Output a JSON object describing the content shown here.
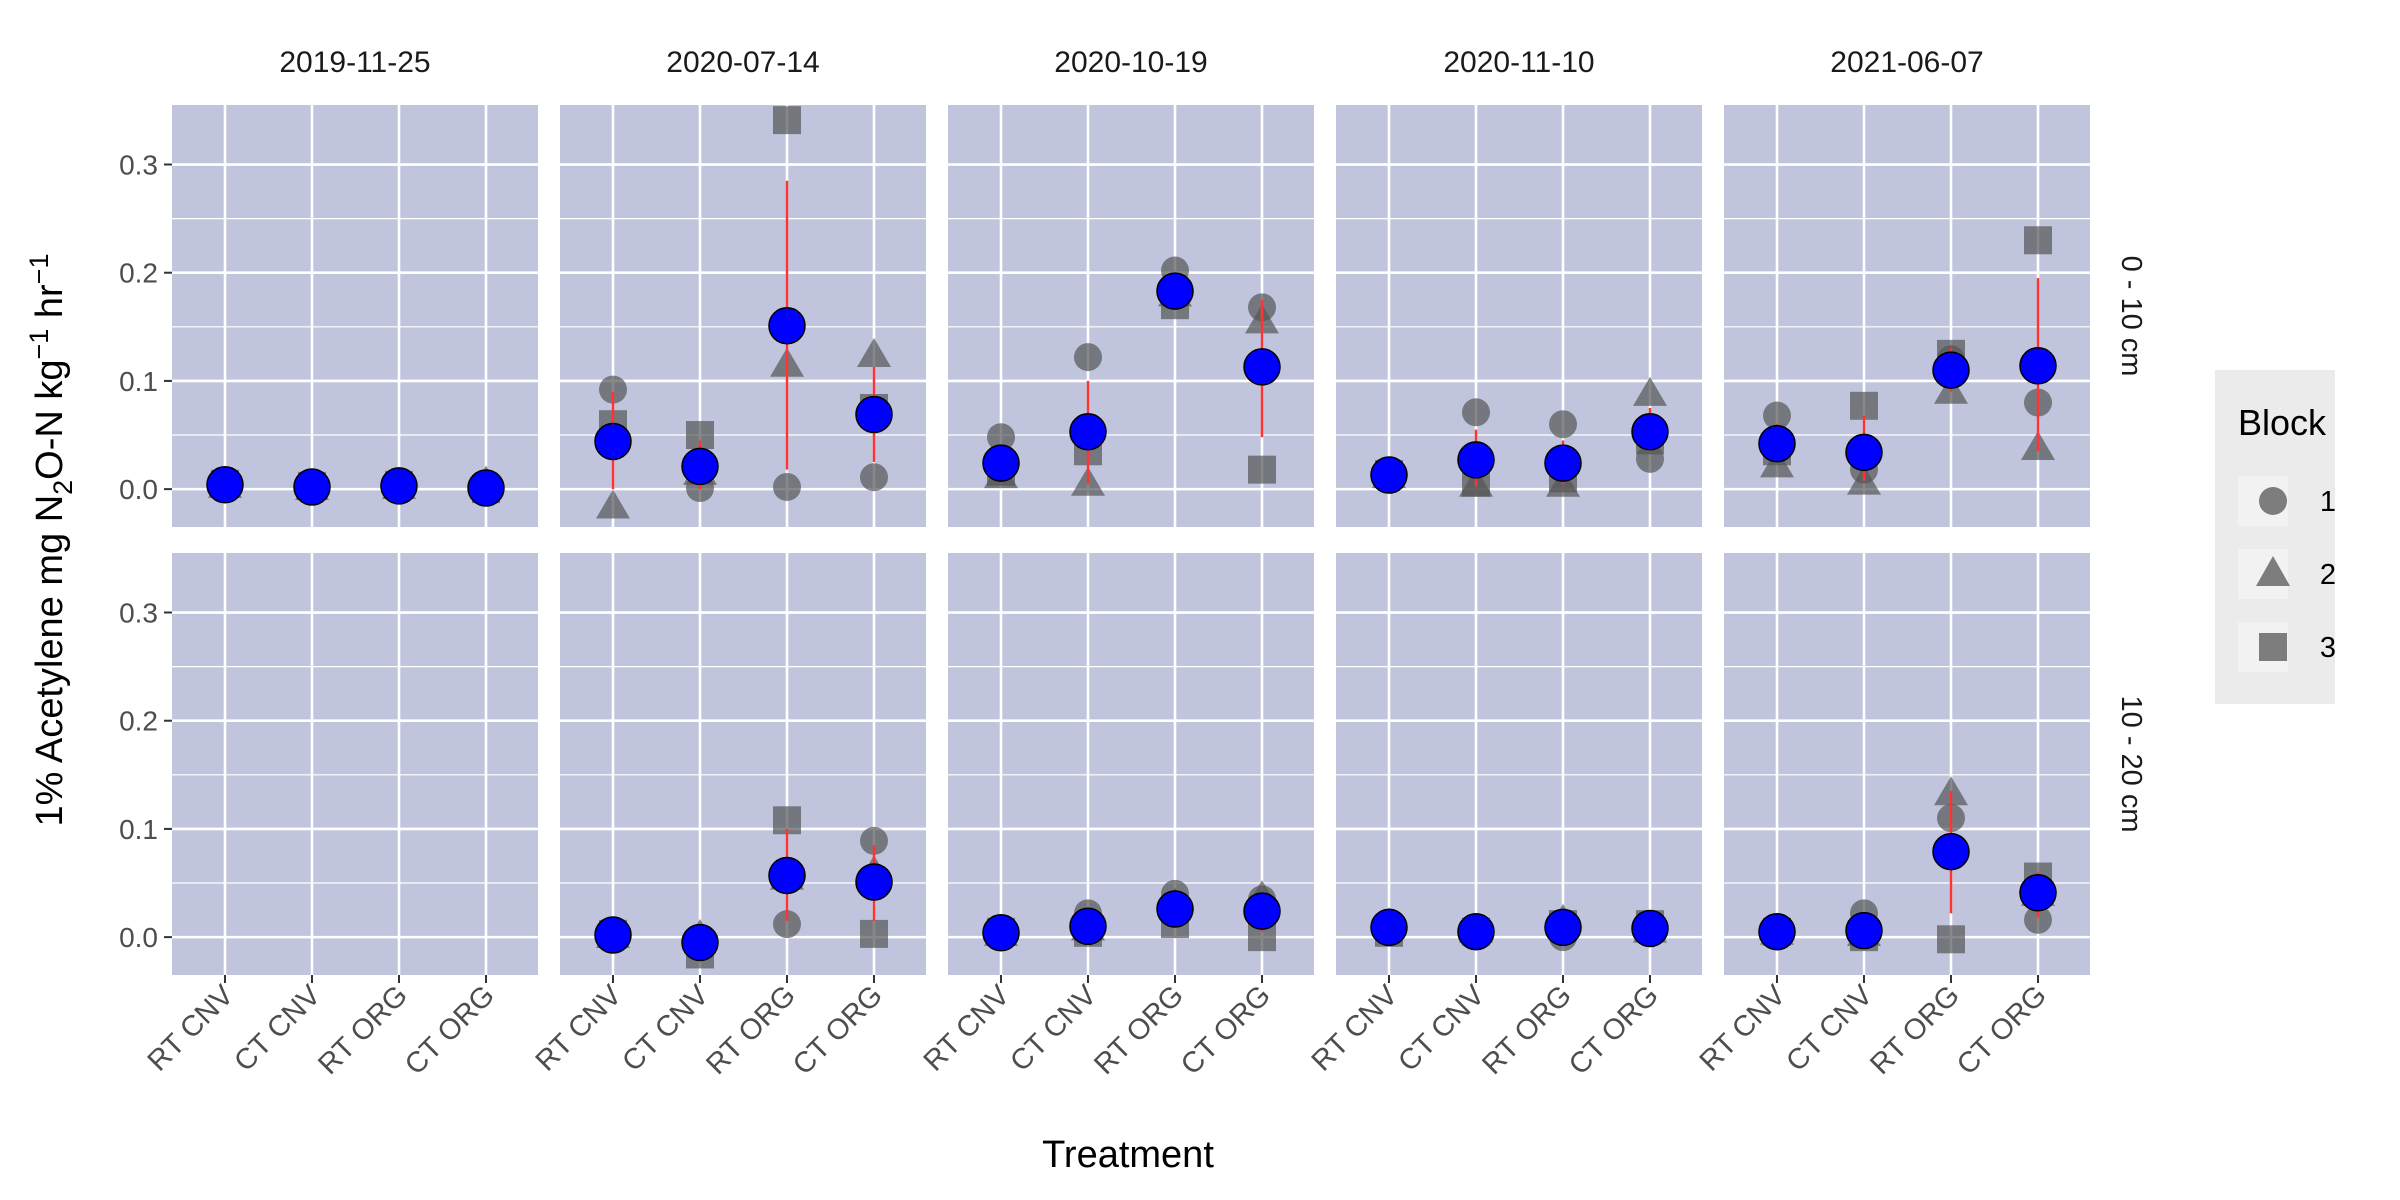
{
  "chart_data": {
    "type": "scatter",
    "xlabel": "Treatment",
    "ylabel": {
      "main": "1% Acetylene mg N",
      "sub": "2",
      "mid": "O-N kg",
      "sup1": "−1",
      "mid2": " hr",
      "sup2": "−1"
    },
    "ylim": [
      -0.035,
      0.355
    ],
    "yticks": [
      "0.0",
      "0.1",
      "0.2",
      "0.3"
    ],
    "ytick_values": [
      0.0,
      0.1,
      0.2,
      0.3
    ],
    "categories": [
      "RT CNV",
      "CT CNV",
      "RT ORG",
      "CT ORG"
    ],
    "facet_cols": [
      "2019-11-25",
      "2020-07-14",
      "2020-10-19",
      "2020-11-10",
      "2021-06-07"
    ],
    "facet_rows": [
      "0 - 10 cm",
      "10 - 20 cm"
    ],
    "grid": true,
    "legend": {
      "title": "Block",
      "position": "right",
      "items": [
        {
          "label": "1",
          "shape": "circle"
        },
        {
          "label": "2",
          "shape": "triangle"
        },
        {
          "label": "3",
          "shape": "square"
        }
      ]
    },
    "colors": {
      "panel_bg": "#c0c5dd",
      "grid": "#ffffff",
      "mean": "#0000ff",
      "error_bar": "#ff3333",
      "block_points": "#555555",
      "legend_bg": "#ebebeb"
    },
    "panels": [
      {
        "row": 0,
        "col": 0,
        "data": [
          {
            "cat": "RT CNV",
            "mean": 0.004,
            "lo": 0.004,
            "hi": 0.004,
            "blocks": [
              0.004,
              0.003,
              0.005
            ]
          },
          {
            "cat": "CT CNV",
            "mean": 0.002,
            "lo": 0.002,
            "hi": 0.002,
            "blocks": [
              0.002,
              0.001,
              0.003
            ]
          },
          {
            "cat": "RT ORG",
            "mean": 0.003,
            "lo": 0.003,
            "hi": 0.003,
            "blocks": [
              0.003,
              0.002,
              0.004
            ]
          },
          {
            "cat": "CT ORG",
            "mean": 0.001,
            "lo": 0.001,
            "hi": 0.001,
            "blocks": [
              0.001,
              0.006,
              0.0
            ]
          }
        ]
      },
      {
        "row": 0,
        "col": 1,
        "data": [
          {
            "cat": "RT CNV",
            "mean": 0.044,
            "lo": 0.0,
            "hi": 0.09,
            "blocks": [
              0.092,
              -0.016,
              0.06
            ]
          },
          {
            "cat": "CT CNV",
            "mean": 0.021,
            "lo": 0.0,
            "hi": 0.045,
            "blocks": [
              0.001,
              0.015,
              0.05
            ]
          },
          {
            "cat": "RT ORG",
            "mean": 0.151,
            "lo": 0.018,
            "hi": 0.285,
            "blocks": [
              0.002,
              0.115,
              0.341
            ]
          },
          {
            "cat": "CT ORG",
            "mean": 0.069,
            "lo": 0.025,
            "hi": 0.113,
            "blocks": [
              0.011,
              0.124,
              0.075
            ]
          }
        ]
      },
      {
        "row": 0,
        "col": 2,
        "data": [
          {
            "cat": "RT CNV",
            "mean": 0.024,
            "lo": 0.013,
            "hi": 0.037,
            "blocks": [
              0.048,
              0.012,
              0.016
            ]
          },
          {
            "cat": "CT CNV",
            "mean": 0.053,
            "lo": 0.005,
            "hi": 0.1,
            "blocks": [
              0.122,
              0.005,
              0.035
            ]
          },
          {
            "cat": "RT ORG",
            "mean": 0.183,
            "lo": 0.17,
            "hi": 0.2,
            "blocks": [
              0.202,
              0.18,
              0.17
            ]
          },
          {
            "cat": "CT ORG",
            "mean": 0.113,
            "lo": 0.048,
            "hi": 0.175,
            "blocks": [
              0.168,
              0.155,
              0.018
            ]
          }
        ]
      },
      {
        "row": 0,
        "col": 3,
        "data": [
          {
            "cat": "RT CNV",
            "mean": 0.013,
            "lo": 0.013,
            "hi": 0.013,
            "blocks": [
              0.013,
              0.012,
              0.014
            ]
          },
          {
            "cat": "CT CNV",
            "mean": 0.027,
            "lo": 0.003,
            "hi": 0.055,
            "blocks": [
              0.071,
              0.004,
              0.006
            ]
          },
          {
            "cat": "RT ORG",
            "mean": 0.024,
            "lo": 0.005,
            "hi": 0.045,
            "blocks": [
              0.06,
              0.004,
              0.01
            ]
          },
          {
            "cat": "CT ORG",
            "mean": 0.053,
            "lo": 0.035,
            "hi": 0.075,
            "blocks": [
              0.028,
              0.088,
              0.045
            ]
          }
        ]
      },
      {
        "row": 0,
        "col": 4,
        "data": [
          {
            "cat": "RT CNV",
            "mean": 0.042,
            "lo": 0.025,
            "hi": 0.06,
            "blocks": [
              0.068,
              0.022,
              0.035
            ]
          },
          {
            "cat": "CT CNV",
            "mean": 0.034,
            "lo": 0.008,
            "hi": 0.068,
            "blocks": [
              0.018,
              0.006,
              0.077
            ]
          },
          {
            "cat": "RT ORG",
            "mean": 0.11,
            "lo": 0.09,
            "hi": 0.13,
            "blocks": [
              0.12,
              0.09,
              0.125
            ]
          },
          {
            "cat": "CT ORG",
            "mean": 0.114,
            "lo": 0.035,
            "hi": 0.195,
            "blocks": [
              0.08,
              0.038,
              0.23
            ]
          }
        ]
      },
      {
        "row": 1,
        "col": 0,
        "data": []
      },
      {
        "row": 1,
        "col": 1,
        "data": [
          {
            "cat": "RT CNV",
            "mean": 0.002,
            "lo": 0.002,
            "hi": 0.002,
            "blocks": [
              0.002,
              0.001,
              0.003
            ]
          },
          {
            "cat": "CT CNV",
            "mean": -0.005,
            "lo": -0.01,
            "hi": 0.0,
            "blocks": [
              -0.002,
              0.001,
              -0.016
            ]
          },
          {
            "cat": "RT ORG",
            "mean": 0.057,
            "lo": 0.015,
            "hi": 0.1,
            "blocks": [
              0.012,
              0.055,
              0.108
            ]
          },
          {
            "cat": "CT ORG",
            "mean": 0.051,
            "lo": 0.015,
            "hi": 0.085,
            "blocks": [
              0.089,
              0.06,
              0.003
            ]
          }
        ]
      },
      {
        "row": 1,
        "col": 2,
        "data": [
          {
            "cat": "RT CNV",
            "mean": 0.004,
            "lo": 0.004,
            "hi": 0.004,
            "blocks": [
              0.004,
              0.003,
              0.005
            ]
          },
          {
            "cat": "CT CNV",
            "mean": 0.01,
            "lo": 0.003,
            "hi": 0.022,
            "blocks": [
              0.022,
              0.008,
              0.004
            ]
          },
          {
            "cat": "RT ORG",
            "mean": 0.026,
            "lo": 0.015,
            "hi": 0.04,
            "blocks": [
              0.04,
              0.03,
              0.012
            ]
          },
          {
            "cat": "CT ORG",
            "mean": 0.024,
            "lo": 0.005,
            "hi": 0.04,
            "blocks": [
              0.035,
              0.037,
              0.0
            ]
          }
        ]
      },
      {
        "row": 1,
        "col": 3,
        "data": [
          {
            "cat": "RT CNV",
            "mean": 0.009,
            "lo": 0.009,
            "hi": 0.009,
            "blocks": [
              0.01,
              0.012,
              0.004
            ]
          },
          {
            "cat": "CT CNV",
            "mean": 0.005,
            "lo": 0.005,
            "hi": 0.005,
            "blocks": [
              0.004,
              0.006,
              0.005
            ]
          },
          {
            "cat": "RT ORG",
            "mean": 0.009,
            "lo": 0.0,
            "hi": 0.02,
            "blocks": [
              0.0,
              0.015,
              0.012
            ]
          },
          {
            "cat": "CT ORG",
            "mean": 0.008,
            "lo": 0.003,
            "hi": 0.015,
            "blocks": [
              0.008,
              0.006,
              0.012
            ]
          }
        ]
      },
      {
        "row": 1,
        "col": 4,
        "data": [
          {
            "cat": "RT CNV",
            "mean": 0.005,
            "lo": 0.005,
            "hi": 0.005,
            "blocks": [
              0.006,
              0.004,
              0.005
            ]
          },
          {
            "cat": "CT CNV",
            "mean": 0.006,
            "lo": 0.0,
            "hi": 0.02,
            "blocks": [
              0.022,
              0.003,
              0.0
            ]
          },
          {
            "cat": "RT ORG",
            "mean": 0.079,
            "lo": 0.022,
            "hi": 0.135,
            "blocks": [
              0.11,
              0.133,
              -0.002
            ]
          },
          {
            "cat": "CT ORG",
            "mean": 0.041,
            "lo": 0.018,
            "hi": 0.06,
            "blocks": [
              0.016,
              0.04,
              0.056
            ]
          }
        ]
      }
    ]
  }
}
